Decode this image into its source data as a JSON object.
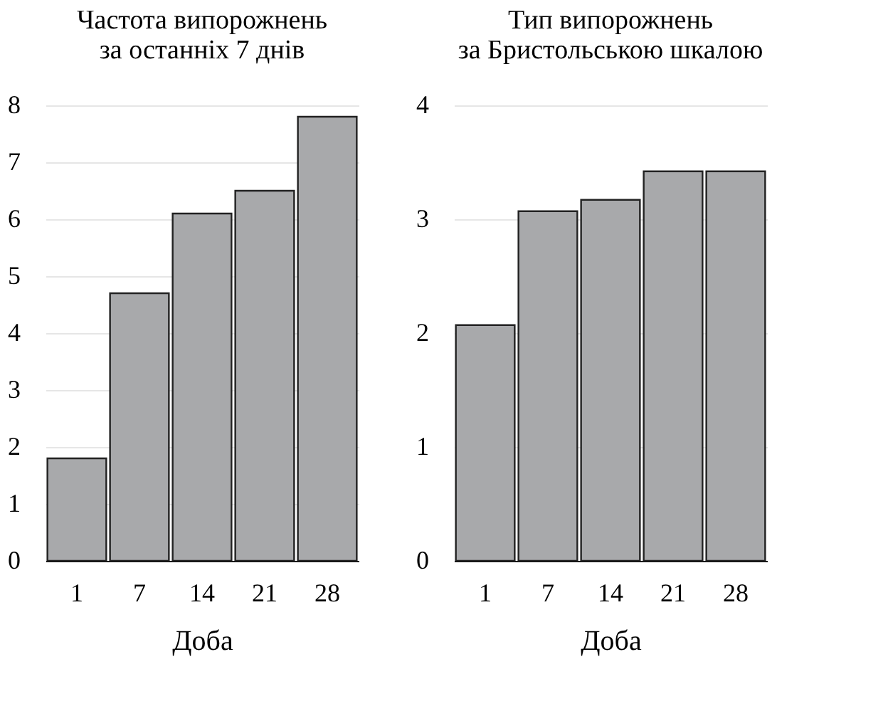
{
  "chart_data": [
    {
      "type": "bar",
      "title": [
        "Частота випорожнень",
        "за останніх 7 днів"
      ],
      "xlabel": "Доба",
      "categories": [
        "1",
        "7",
        "14",
        "21",
        "28"
      ],
      "values": [
        1.8,
        4.7,
        6.1,
        6.5,
        7.8
      ],
      "color": "#a8a9ab",
      "ylim": [
        0,
        8
      ],
      "yticks": [
        0,
        1,
        2,
        3,
        4,
        5,
        6,
        7,
        8
      ],
      "grid": "y"
    },
    {
      "type": "bar",
      "title": [
        "Тип випорожнень",
        "за Бристольською шкалою"
      ],
      "xlabel": "Доба",
      "categories": [
        "1",
        "7",
        "14",
        "21",
        "28"
      ],
      "values": [
        2.07,
        3.07,
        3.17,
        3.42,
        3.42
      ],
      "color": "#a8a9ab",
      "ylim": [
        0,
        4
      ],
      "yticks": [
        0,
        1,
        2,
        3,
        4
      ],
      "grid": "y"
    }
  ]
}
